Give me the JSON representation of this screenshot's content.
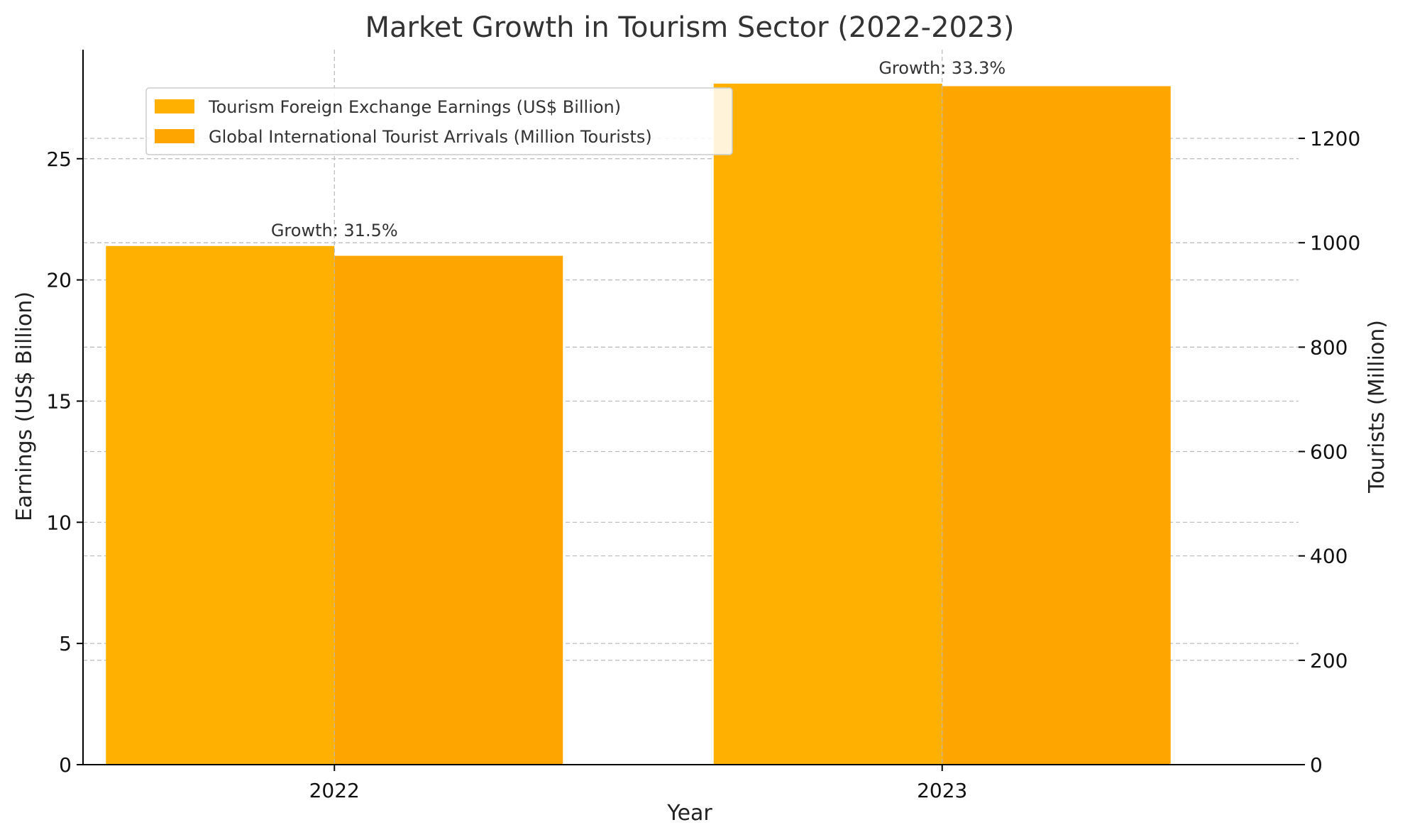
{
  "chart_data": {
    "type": "bar",
    "title": "Market Growth in Tourism Sector (2022-2023)",
    "xlabel": "Year",
    "ylabel": "Earnings (US$ Billion)",
    "y2label": "Tourists (Million)",
    "categories": [
      "2022",
      "2023"
    ],
    "ylim": [
      0,
      29.5
    ],
    "y2lim": [
      0,
      1370
    ],
    "yticks": [
      0,
      5,
      10,
      15,
      20,
      25
    ],
    "y2ticks": [
      0,
      200,
      400,
      600,
      800,
      1000,
      1200
    ],
    "grid": true,
    "legend_position": "top-left",
    "series": [
      {
        "name": "Tourism Foreign Exchange Earnings (US$ Billion)",
        "axis": "left",
        "values": [
          21.4,
          28.1
        ],
        "color": "#FFB000"
      },
      {
        "name": "Global International Tourist Arrivals (Million Tourists)",
        "axis": "right",
        "values": [
          975,
          1300
        ],
        "color": "#FFA500"
      }
    ],
    "annotations": [
      {
        "category": "2022",
        "text": "Growth: 31.5%"
      },
      {
        "category": "2023",
        "text": "Growth: 33.3%"
      }
    ]
  }
}
